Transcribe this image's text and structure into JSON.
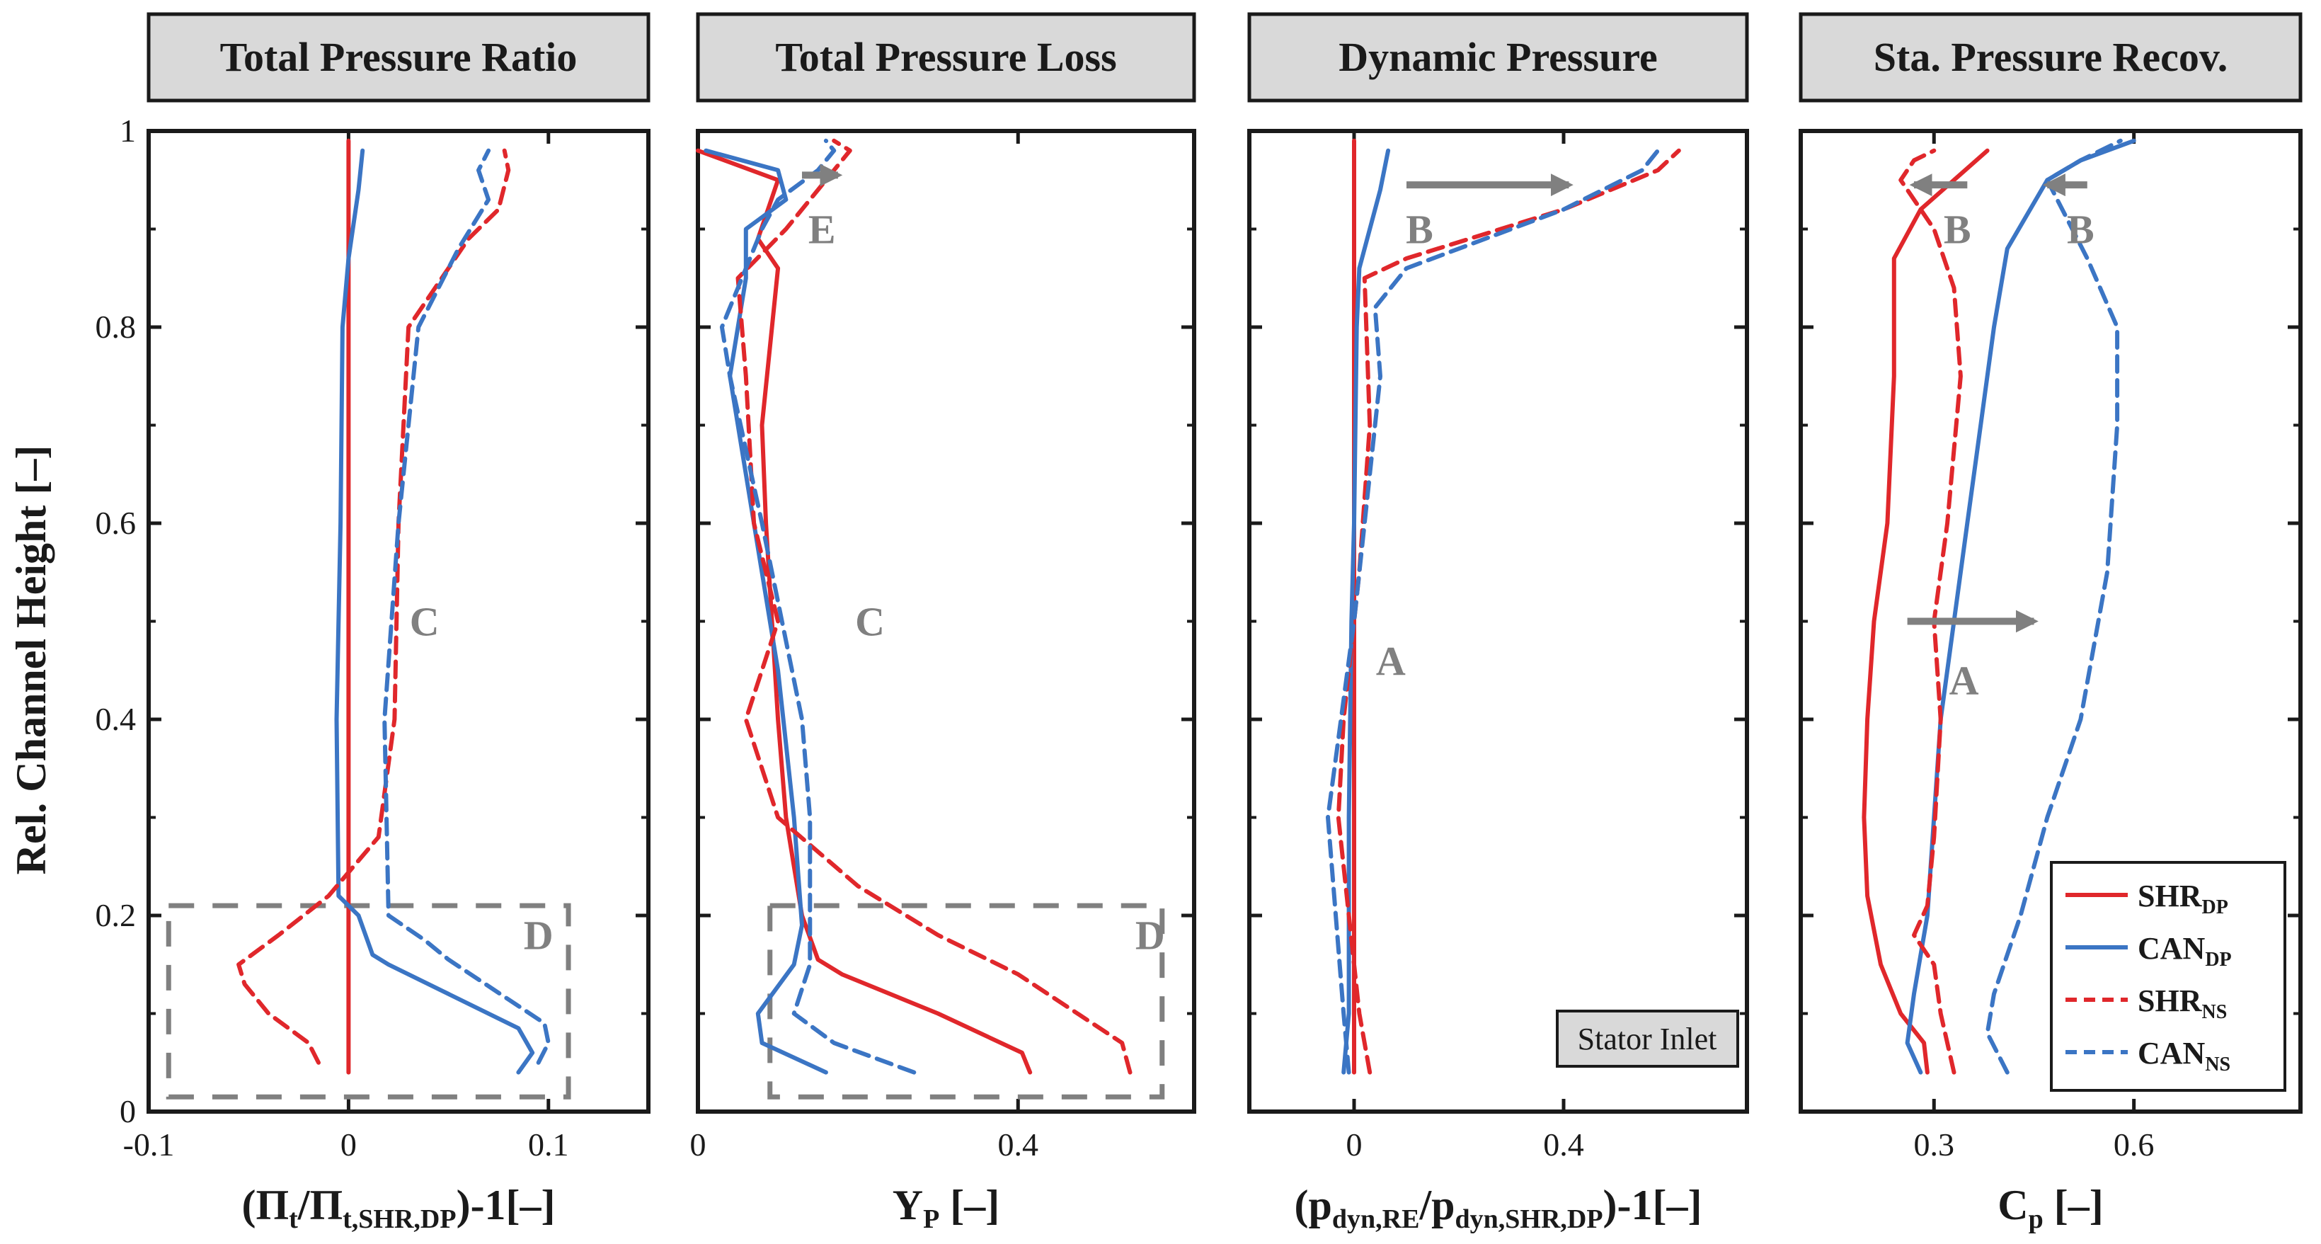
{
  "colors": {
    "shr": "#e0272b",
    "can": "#3b75c4",
    "annotation": "#808080",
    "title_box": "#d9d9d9"
  },
  "y_axis": {
    "label": "Rel. Channel Height [–]",
    "range": [
      0,
      1
    ],
    "ticks": [
      "0",
      "0.2",
      "0.4",
      "0.6",
      "0.8",
      "1"
    ],
    "tick_values": [
      0,
      0.2,
      0.4,
      0.6,
      0.8,
      1
    ]
  },
  "legend": {
    "placement": "bottom-right of fourth panel",
    "entries": [
      {
        "base": "SHR",
        "sub": "DP",
        "color": "#e0272b",
        "dash": "solid"
      },
      {
        "base": "CAN",
        "sub": "DP",
        "color": "#3b75c4",
        "dash": "solid"
      },
      {
        "base": "SHR",
        "sub": "NS",
        "color": "#e0272b",
        "dash": "dashed"
      },
      {
        "base": "CAN",
        "sub": "NS",
        "color": "#3b75c4",
        "dash": "dashed"
      }
    ]
  },
  "chart_data": [
    {
      "type": "line",
      "title": "Total Pressure Ratio",
      "xlabel": {
        "pre": "(Π",
        "sub1": "t",
        "mid": "/Π",
        "sub2": "t,SHR,DP",
        "post": ")-1[–]"
      },
      "xlim": [
        -0.1,
        0.15
      ],
      "xticks": [
        -0.1,
        0,
        0.1
      ],
      "xtick_labels": [
        "-0.1",
        "0",
        "0.1"
      ],
      "series": [
        {
          "legend_index": 0,
          "points": [
            [
              0,
              0.04
            ],
            [
              0,
              0.99
            ]
          ]
        },
        {
          "legend_index": 1,
          "points": [
            [
              0.085,
              0.04
            ],
            [
              0.092,
              0.06
            ],
            [
              0.085,
              0.085
            ],
            [
              0.02,
              0.15
            ],
            [
              0.012,
              0.16
            ],
            [
              0.005,
              0.2
            ],
            [
              -0.005,
              0.22
            ],
            [
              -0.006,
              0.4
            ],
            [
              -0.004,
              0.6
            ],
            [
              -0.003,
              0.8
            ],
            [
              0,
              0.87
            ],
            [
              0.005,
              0.94
            ],
            [
              0.007,
              0.98
            ]
          ]
        },
        {
          "legend_index": 2,
          "points": [
            [
              -0.015,
              0.05
            ],
            [
              -0.02,
              0.07
            ],
            [
              -0.04,
              0.1
            ],
            [
              -0.052,
              0.13
            ],
            [
              -0.055,
              0.15
            ],
            [
              -0.035,
              0.18
            ],
            [
              -0.01,
              0.22
            ],
            [
              0.015,
              0.28
            ],
            [
              0.023,
              0.4
            ],
            [
              0.025,
              0.6
            ],
            [
              0.03,
              0.8
            ],
            [
              0.06,
              0.89
            ],
            [
              0.075,
              0.92
            ],
            [
              0.08,
              0.96
            ],
            [
              0.078,
              0.98
            ]
          ]
        },
        {
          "legend_index": 3,
          "points": [
            [
              0.095,
              0.05
            ],
            [
              0.1,
              0.07
            ],
            [
              0.098,
              0.09
            ],
            [
              0.05,
              0.155
            ],
            [
              0.038,
              0.175
            ],
            [
              0.02,
              0.2
            ],
            [
              0.018,
              0.4
            ],
            [
              0.025,
              0.6
            ],
            [
              0.035,
              0.8
            ],
            [
              0.055,
              0.88
            ],
            [
              0.07,
              0.93
            ],
            [
              0.065,
              0.96
            ],
            [
              0.07,
              0.98
            ]
          ]
        }
      ],
      "annotations": [
        {
          "text": "C",
          "x": 0.038,
          "y": 0.5
        },
        {
          "text": "D",
          "x": 0.095,
          "y": 0.18
        }
      ],
      "dashed_box": {
        "x": [
          -0.09,
          0.11
        ],
        "y": [
          0.015,
          0.21
        ]
      }
    },
    {
      "type": "line",
      "title": "Total Pressure Loss",
      "xlabel": {
        "pre": "Y",
        "sub1": "P",
        "mid": " [–]",
        "sub2": "",
        "post": ""
      },
      "xlim": [
        0,
        0.62
      ],
      "xticks": [
        0,
        0.4
      ],
      "xtick_labels": [
        "0",
        "0.4"
      ],
      "series": [
        {
          "legend_index": 0,
          "points": [
            [
              0.415,
              0.04
            ],
            [
              0.405,
              0.06
            ],
            [
              0.3,
              0.1
            ],
            [
              0.18,
              0.14
            ],
            [
              0.15,
              0.155
            ],
            [
              0.13,
              0.2
            ],
            [
              0.11,
              0.3
            ],
            [
              0.1,
              0.4
            ],
            [
              0.085,
              0.6
            ],
            [
              0.08,
              0.7
            ],
            [
              0.1,
              0.86
            ],
            [
              0.075,
              0.89
            ],
            [
              0.1,
              0.95
            ],
            [
              0.0,
              0.98
            ]
          ]
        },
        {
          "legend_index": 1,
          "points": [
            [
              0.16,
              0.04
            ],
            [
              0.08,
              0.07
            ],
            [
              0.075,
              0.1
            ],
            [
              0.12,
              0.15
            ],
            [
              0.13,
              0.19
            ],
            [
              0.12,
              0.3
            ],
            [
              0.1,
              0.45
            ],
            [
              0.07,
              0.6
            ],
            [
              0.04,
              0.75
            ],
            [
              0.06,
              0.85
            ],
            [
              0.06,
              0.9
            ],
            [
              0.11,
              0.93
            ],
            [
              0.1,
              0.96
            ],
            [
              0.01,
              0.98
            ]
          ]
        },
        {
          "legend_index": 2,
          "points": [
            [
              0.54,
              0.04
            ],
            [
              0.53,
              0.07
            ],
            [
              0.4,
              0.14
            ],
            [
              0.3,
              0.18
            ],
            [
              0.2,
              0.23
            ],
            [
              0.1,
              0.3
            ],
            [
              0.06,
              0.4
            ],
            [
              0.1,
              0.5
            ],
            [
              0.07,
              0.6
            ],
            [
              0.06,
              0.75
            ],
            [
              0.05,
              0.85
            ],
            [
              0.11,
              0.9
            ],
            [
              0.16,
              0.95
            ],
            [
              0.19,
              0.98
            ],
            [
              0.17,
              0.99
            ]
          ]
        },
        {
          "legend_index": 3,
          "points": [
            [
              0.27,
              0.04
            ],
            [
              0.17,
              0.07
            ],
            [
              0.12,
              0.1
            ],
            [
              0.14,
              0.15
            ],
            [
              0.14,
              0.2
            ],
            [
              0.14,
              0.3
            ],
            [
              0.13,
              0.4
            ],
            [
              0.08,
              0.6
            ],
            [
              0.04,
              0.75
            ],
            [
              0.03,
              0.8
            ],
            [
              0.08,
              0.9
            ],
            [
              0.1,
              0.93
            ],
            [
              0.15,
              0.96
            ],
            [
              0.17,
              0.98
            ],
            [
              0.16,
              0.99
            ]
          ]
        }
      ],
      "annotations": [
        {
          "text": "C",
          "x": 0.215,
          "y": 0.5
        },
        {
          "text": "D",
          "x": 0.565,
          "y": 0.18
        },
        {
          "text": "E",
          "x": 0.155,
          "y": 0.9
        }
      ],
      "arrows": [
        {
          "from": [
            0.13,
            0.955
          ],
          "to": [
            0.175,
            0.955
          ]
        }
      ],
      "dashed_box": {
        "x": [
          0.09,
          0.58
        ],
        "y": [
          0.015,
          0.21
        ]
      }
    },
    {
      "type": "line",
      "title": "Dynamic Pressure",
      "xlabel": {
        "pre": "(p",
        "sub1": "dyn,RE",
        "mid": "/p",
        "sub2": "dyn,SHR,DP",
        "post": ")-1[–]"
      },
      "xlim": [
        -0.2,
        0.75
      ],
      "xticks": [
        0,
        0.4
      ],
      "xtick_labels": [
        "0",
        "0.4"
      ],
      "series": [
        {
          "legend_index": 0,
          "points": [
            [
              0,
              0.04
            ],
            [
              0,
              0.99
            ]
          ]
        },
        {
          "legend_index": 1,
          "points": [
            [
              -0.02,
              0.04
            ],
            [
              -0.01,
              0.1
            ],
            [
              -0.01,
              0.3
            ],
            [
              -0.005,
              0.5
            ],
            [
              0,
              0.6
            ],
            [
              0.005,
              0.8
            ],
            [
              0.01,
              0.86
            ],
            [
              0.05,
              0.94
            ],
            [
              0.065,
              0.98
            ]
          ]
        },
        {
          "legend_index": 2,
          "points": [
            [
              0.03,
              0.04
            ],
            [
              0.01,
              0.1
            ],
            [
              -0.01,
              0.2
            ],
            [
              -0.03,
              0.3
            ],
            [
              -0.02,
              0.4
            ],
            [
              0.01,
              0.55
            ],
            [
              0.03,
              0.7
            ],
            [
              0.02,
              0.85
            ],
            [
              0.1,
              0.87
            ],
            [
              0.4,
              0.92
            ],
            [
              0.58,
              0.96
            ],
            [
              0.62,
              0.98
            ]
          ]
        },
        {
          "legend_index": 3,
          "points": [
            [
              -0.01,
              0.04
            ],
            [
              -0.02,
              0.1
            ],
            [
              -0.05,
              0.3
            ],
            [
              0.0,
              0.5
            ],
            [
              0.05,
              0.75
            ],
            [
              0.04,
              0.82
            ],
            [
              0.1,
              0.86
            ],
            [
              0.4,
              0.92
            ],
            [
              0.55,
              0.96
            ],
            [
              0.58,
              0.98
            ]
          ]
        }
      ],
      "annotations": [
        {
          "text": "A",
          "x": 0.07,
          "y": 0.46
        },
        {
          "text": "B",
          "x": 0.125,
          "y": 0.9
        }
      ],
      "arrows": [
        {
          "from": [
            0.1,
            0.945
          ],
          "to": [
            0.41,
            0.945
          ]
        }
      ],
      "boxed_label": {
        "text": "Stator Inlet"
      }
    },
    {
      "type": "line",
      "title": "Sta. Pressure Recov.",
      "xlabel": {
        "pre": "C",
        "sub1": "p",
        "mid": " [–]",
        "sub2": "",
        "post": ""
      },
      "xlim": [
        0.1,
        0.85
      ],
      "xticks": [
        0.3,
        0.6
      ],
      "xtick_labels": [
        "0.3",
        "0.6"
      ],
      "series": [
        {
          "legend_index": 0,
          "points": [
            [
              0.29,
              0.04
            ],
            [
              0.285,
              0.07
            ],
            [
              0.25,
              0.1
            ],
            [
              0.22,
              0.15
            ],
            [
              0.2,
              0.22
            ],
            [
              0.195,
              0.3
            ],
            [
              0.2,
              0.4
            ],
            [
              0.21,
              0.5
            ],
            [
              0.23,
              0.6
            ],
            [
              0.24,
              0.75
            ],
            [
              0.24,
              0.87
            ],
            [
              0.28,
              0.92
            ],
            [
              0.33,
              0.95
            ],
            [
              0.38,
              0.98
            ]
          ]
        },
        {
          "legend_index": 1,
          "points": [
            [
              0.28,
              0.04
            ],
            [
              0.26,
              0.07
            ],
            [
              0.27,
              0.12
            ],
            [
              0.29,
              0.2
            ],
            [
              0.3,
              0.3
            ],
            [
              0.31,
              0.4
            ],
            [
              0.33,
              0.5
            ],
            [
              0.35,
              0.6
            ],
            [
              0.37,
              0.7
            ],
            [
              0.39,
              0.8
            ],
            [
              0.41,
              0.88
            ],
            [
              0.47,
              0.95
            ],
            [
              0.52,
              0.97
            ],
            [
              0.6,
              0.99
            ]
          ]
        },
        {
          "legend_index": 2,
          "points": [
            [
              0.33,
              0.04
            ],
            [
              0.31,
              0.1
            ],
            [
              0.3,
              0.15
            ],
            [
              0.27,
              0.18
            ],
            [
              0.29,
              0.21
            ],
            [
              0.3,
              0.28
            ],
            [
              0.31,
              0.4
            ],
            [
              0.3,
              0.5
            ],
            [
              0.32,
              0.6
            ],
            [
              0.34,
              0.75
            ],
            [
              0.33,
              0.84
            ],
            [
              0.3,
              0.9
            ],
            [
              0.25,
              0.95
            ],
            [
              0.27,
              0.97
            ],
            [
              0.3,
              0.98
            ]
          ]
        },
        {
          "legend_index": 3,
          "points": [
            [
              0.41,
              0.04
            ],
            [
              0.38,
              0.08
            ],
            [
              0.39,
              0.12
            ],
            [
              0.43,
              0.2
            ],
            [
              0.47,
              0.3
            ],
            [
              0.52,
              0.4
            ],
            [
              0.56,
              0.55
            ],
            [
              0.575,
              0.7
            ],
            [
              0.575,
              0.8
            ],
            [
              0.53,
              0.87
            ],
            [
              0.47,
              0.95
            ],
            [
              0.52,
              0.97
            ],
            [
              0.58,
              0.99
            ]
          ]
        }
      ],
      "annotations": [
        {
          "text": "A",
          "x": 0.345,
          "y": 0.44
        },
        {
          "text": "B",
          "x": 0.335,
          "y": 0.9
        },
        {
          "text": "B",
          "x": 0.52,
          "y": 0.9
        }
      ],
      "arrows": [
        {
          "from": [
            0.26,
            0.5
          ],
          "to": [
            0.45,
            0.5
          ]
        },
        {
          "from": [
            0.35,
            0.945
          ],
          "to": [
            0.27,
            0.945
          ]
        },
        {
          "from": [
            0.53,
            0.945
          ],
          "to": [
            0.47,
            0.945
          ]
        }
      ]
    }
  ]
}
